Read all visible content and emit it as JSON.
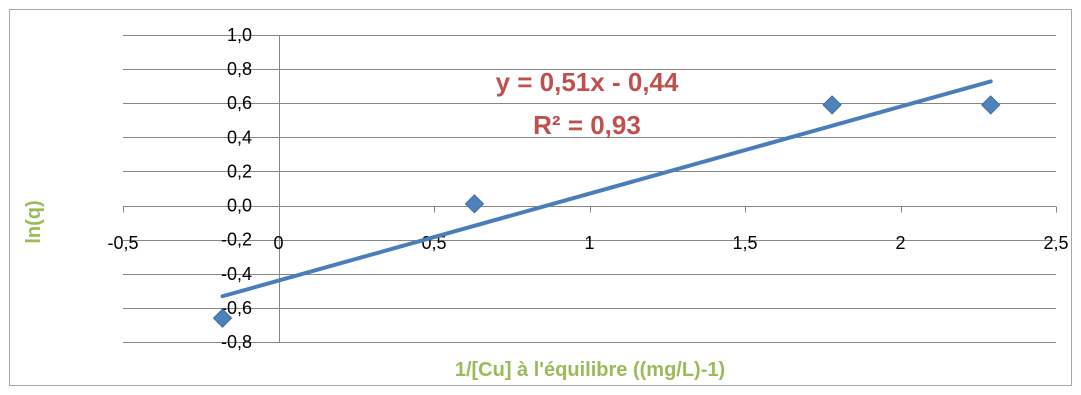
{
  "chart_data": {
    "type": "scatter",
    "title": "",
    "xlabel": "1/[Cu]  à l'équilibre ((mg/L)-1)",
    "ylabel": "ln(q)",
    "xlim": [
      -0.5,
      2.5
    ],
    "ylim": [
      -0.8,
      1.0
    ],
    "x_ticks": [
      -0.5,
      0,
      0.5,
      1,
      1.5,
      2,
      2.5
    ],
    "x_tick_labels": [
      "-0,5",
      "0",
      "0,5",
      "1",
      "1,5",
      "2",
      "2,5"
    ],
    "y_ticks": [
      -0.8,
      -0.6,
      -0.4,
      -0.2,
      0.0,
      0.2,
      0.4,
      0.6,
      0.8,
      1.0
    ],
    "y_tick_labels": [
      "-0,8",
      "-0,6",
      "-0,4",
      "-0,2",
      "0,0",
      "0,2",
      "0,4",
      "0,6",
      "0,8",
      "1,0"
    ],
    "grid": "horizontal",
    "legend": "none",
    "series": [
      {
        "marker": "diamond",
        "color": "#4f81bd",
        "points": [
          {
            "x": -0.18,
            "y": -0.66
          },
          {
            "x": 0.63,
            "y": 0.01
          },
          {
            "x": 1.78,
            "y": 0.59
          },
          {
            "x": 2.29,
            "y": 0.59
          }
        ]
      }
    ],
    "trendline": {
      "type": "linear",
      "slope": 0.51,
      "intercept": -0.44,
      "x_range": [
        -0.18,
        2.29
      ],
      "color": "#4a7ebb"
    },
    "annotations": {
      "equation": "y = 0,51x - 0,44",
      "r_squared": "R² = 0,93",
      "color": "#c0504d"
    },
    "axis_title_color": "#9bbb59"
  }
}
